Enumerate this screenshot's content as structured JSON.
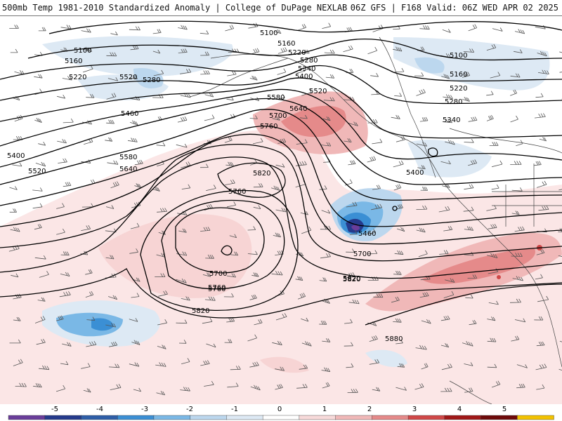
{
  "header": {
    "title_left": "500mb Temp 1981-2010 Standardized Anomaly | College of DuPage NEXLAB",
    "title_right": "06Z GFS | F168 Valid: 06Z WED APR 02 2025"
  },
  "contours": {
    "labels": [
      "5100",
      "5100",
      "5160",
      "5160",
      "5220",
      "5220",
      "5280",
      "5280",
      "5340",
      "5400",
      "5460",
      "5520",
      "5520",
      "5580",
      "5640",
      "5700",
      "5760",
      "5820",
      "5100",
      "5160",
      "5220",
      "5280",
      "5340",
      "5400",
      "5460",
      "5520",
      "5580",
      "5640",
      "5700",
      "5760",
      "5820",
      "5760",
      "5700",
      "5760",
      "5820",
      "5820",
      "5400",
      "5880"
    ]
  },
  "colorbar": {
    "ticks": [
      "-5",
      "-4",
      "-3",
      "-2",
      "-1",
      "0",
      "1",
      "2",
      "3",
      "4",
      "5"
    ],
    "colors": [
      "#6a3d9a",
      "#253a8c",
      "#2e5ea8",
      "#3b8fd4",
      "#7ab8e6",
      "#bcd7ee",
      "#dde9f4",
      "#ffffff",
      "#f7dada",
      "#f0b8b8",
      "#e58a8a",
      "#d04848",
      "#a01818",
      "#6e0a0a",
      "#f2c200"
    ]
  }
}
